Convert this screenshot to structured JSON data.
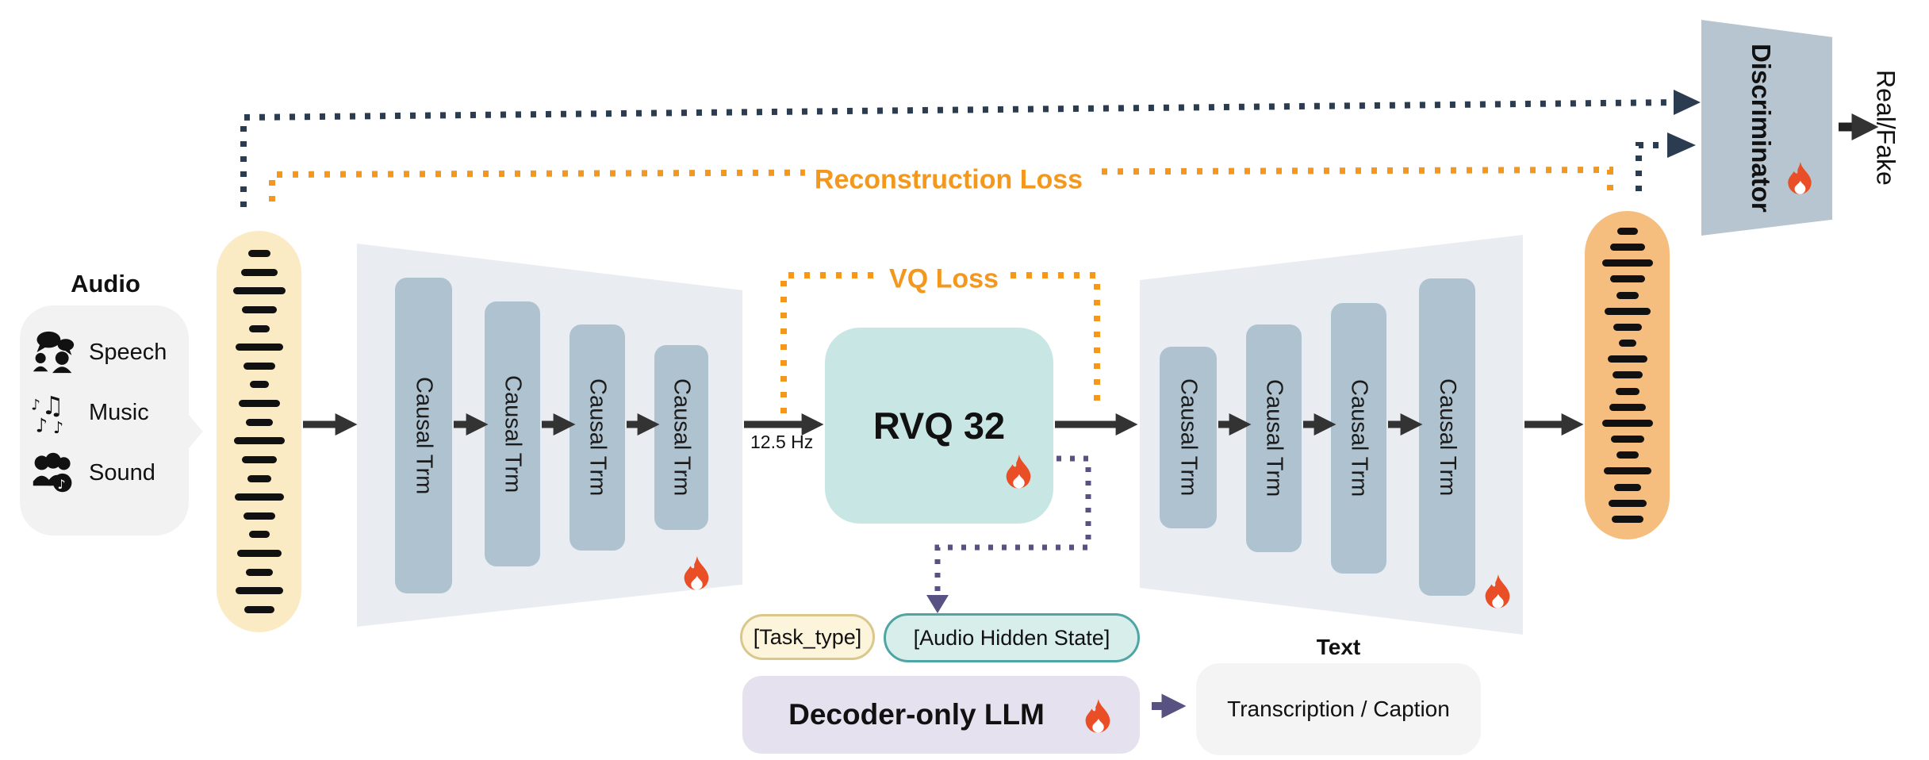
{
  "audio_panel": {
    "title": "Audio",
    "items": [
      {
        "icon": "speech-icon",
        "label": "Speech"
      },
      {
        "icon": "music-icon",
        "label": "Music"
      },
      {
        "icon": "sound-icon",
        "label": "Sound"
      }
    ]
  },
  "encoder": {
    "blocks": [
      "Causal Trm",
      "Causal Trm",
      "Causal Trm",
      "Causal Trm"
    ]
  },
  "quantizer": {
    "label": "RVQ 32",
    "rate": "12.5 Hz"
  },
  "decoder": {
    "blocks": [
      "Causal Trm",
      "Causal Trm",
      "Causal Trm",
      "Causal Trm"
    ]
  },
  "losses": {
    "reconstruction": "Reconstruction Loss",
    "vq": "VQ Loss"
  },
  "discriminator": {
    "label": "Discriminator",
    "output": "Real/Fake"
  },
  "llm": {
    "task_token": "[Task_type]",
    "hidden_token": "[Audio Hidden State]",
    "label": "Decoder-only LLM",
    "output_title": "Text",
    "output_label": "Transcription / Caption"
  },
  "waveforms": {
    "input_bars": [
      28,
      46,
      66,
      44,
      26,
      60,
      40,
      24,
      52,
      34,
      64,
      44,
      30,
      62,
      40,
      26,
      56,
      34,
      60,
      38
    ],
    "output_bars": [
      26,
      44,
      64,
      44,
      28,
      58,
      36,
      22,
      50,
      38,
      30,
      46,
      64,
      42,
      28,
      60,
      34,
      48,
      40
    ]
  },
  "colors": {
    "loss_orange": "#F3971D",
    "navy": "#2B3C50",
    "purple": "#585282",
    "flame": "#E94E26",
    "arrow_dark": "#333333",
    "encoder_fill": "#E9EDF2",
    "block_fill": "#AFC2D0",
    "disc_fill": "#B7C5D0",
    "rvq_fill": "#C8E7E4",
    "llm_fill": "#E5E1EE",
    "task_fill": "#FCF5DB",
    "task_border": "#D9C78C",
    "hidden_fill": "#D7EEEB",
    "hidden_border": "#4FA5A3",
    "input_wave_fill": "#FBEBC4",
    "output_wave_fill": "#F6BE7E"
  }
}
